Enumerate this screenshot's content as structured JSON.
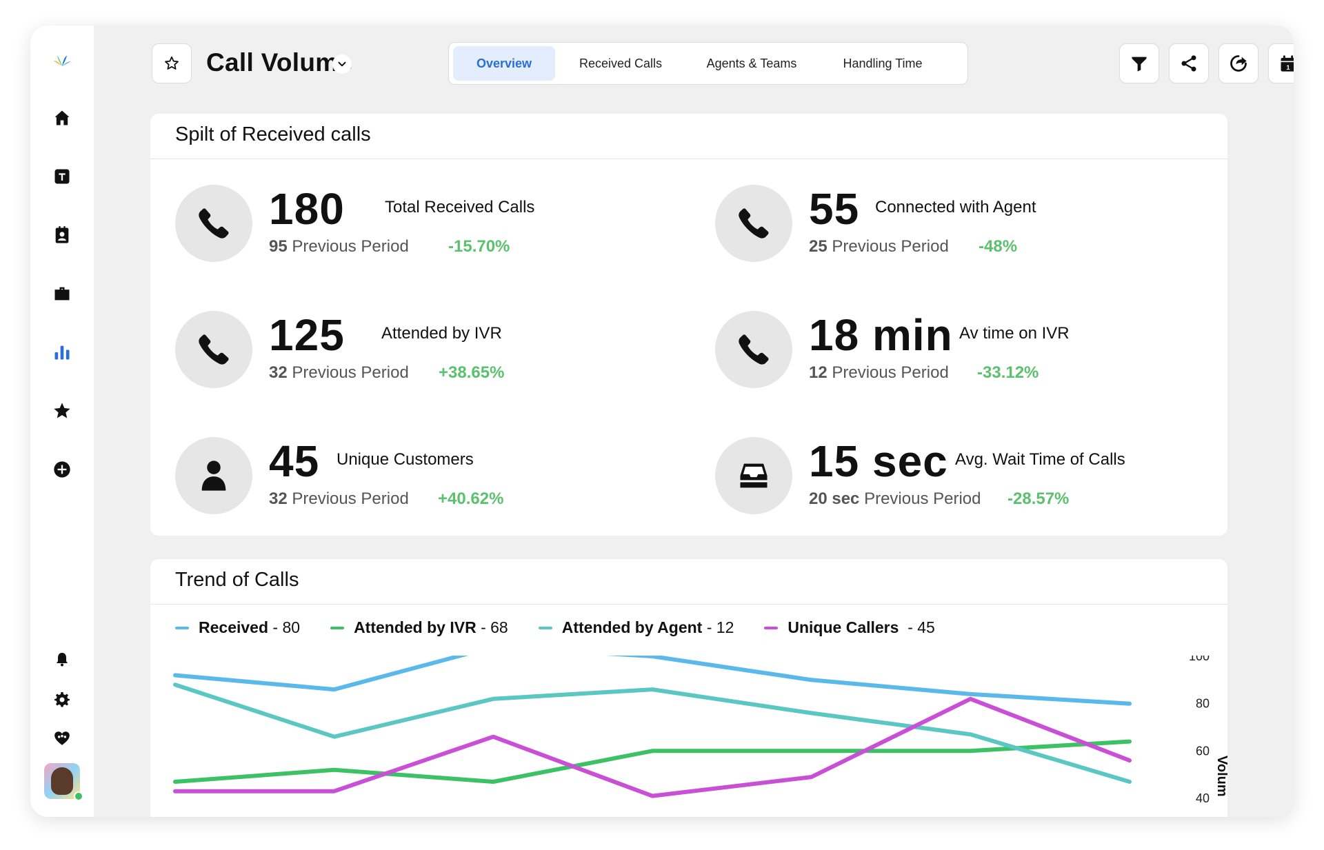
{
  "sidebar": {
    "items": [
      {
        "name": "home-icon"
      },
      {
        "name": "text-t-icon"
      },
      {
        "name": "contact-card-icon"
      },
      {
        "name": "briefcase-icon"
      },
      {
        "name": "bar-chart-icon",
        "active": true
      },
      {
        "name": "star-icon"
      },
      {
        "name": "add-circle-icon"
      }
    ],
    "bottom_items": [
      {
        "name": "bell-icon"
      },
      {
        "name": "gear-icon"
      },
      {
        "name": "heart-community-icon"
      }
    ],
    "active_color": "#2a6ed6"
  },
  "header": {
    "title": "Call Volume",
    "tabs": [
      {
        "label": "Overview",
        "active": true
      },
      {
        "label": "Received Calls",
        "active": false
      },
      {
        "label": "Agents & Teams",
        "active": false
      },
      {
        "label": "Handling Time",
        "active": false
      }
    ],
    "tools": [
      {
        "name": "filter-icon"
      },
      {
        "name": "share-icon"
      },
      {
        "name": "redo-icon"
      },
      {
        "name": "calendar-icon",
        "label": "1"
      }
    ]
  },
  "split_card": {
    "title": "Spilt of Received calls",
    "metrics": [
      {
        "icon": "phone-icon",
        "value": "180",
        "label": "Total Received Calls",
        "prev_value": "95",
        "prev_label": "Previous Period",
        "change": "-15.70%"
      },
      {
        "icon": "phone-icon",
        "value": "55",
        "label": "Connected with Agent",
        "prev_value": "25",
        "prev_label": "Previous Period",
        "change": "-48%"
      },
      {
        "icon": "phone-icon",
        "value": "125",
        "label": "Attended by IVR",
        "prev_value": "32",
        "prev_label": "Previous Period",
        "change": "+38.65%"
      },
      {
        "icon": "phone-icon",
        "value": "18 min",
        "label": "Av time on IVR",
        "prev_value": "12",
        "prev_label": "Previous Period",
        "change": "-33.12%"
      },
      {
        "icon": "person-icon",
        "value": "45",
        "label": "Unique Customers",
        "prev_value": "32",
        "prev_label": "Previous Period",
        "change": "+40.62%"
      },
      {
        "icon": "inbox-tray-icon",
        "value": "15 sec",
        "label": "Avg. Wait Time of Calls",
        "prev_value": "20 sec",
        "prev_label": "Previous Period",
        "change": "-28.57%"
      }
    ],
    "change_color": "#5cc16f"
  },
  "trend_card": {
    "title": "Trend of Calls"
  },
  "chart_data": {
    "type": "line",
    "title": "Trend of Calls",
    "ylabel": "Volum",
    "y_ticks": [
      "100",
      "80",
      "60",
      "40"
    ],
    "ylim": [
      40,
      100
    ],
    "x": [
      1,
      2,
      3,
      4,
      5,
      6,
      7
    ],
    "legend_placement": "top-left",
    "series": [
      {
        "name": "Received",
        "legend_value": "80",
        "color": "#5ab8ea",
        "values": [
          92,
          86,
          104,
          100,
          90,
          84,
          80
        ]
      },
      {
        "name": "Attended by IVR",
        "legend_value": "68",
        "color": "#3cc265",
        "values": [
          47,
          52,
          47,
          60,
          60,
          60,
          64
        ]
      },
      {
        "name": "Attended by Agent",
        "legend_value": "12",
        "color": "#5ac7c2",
        "values": [
          88,
          66,
          82,
          86,
          76,
          67,
          47
        ]
      },
      {
        "name": "Unique Callers",
        "legend_value": "45",
        "color": "#c94fd6",
        "values": [
          43,
          43,
          66,
          41,
          49,
          82,
          56
        ]
      }
    ]
  }
}
